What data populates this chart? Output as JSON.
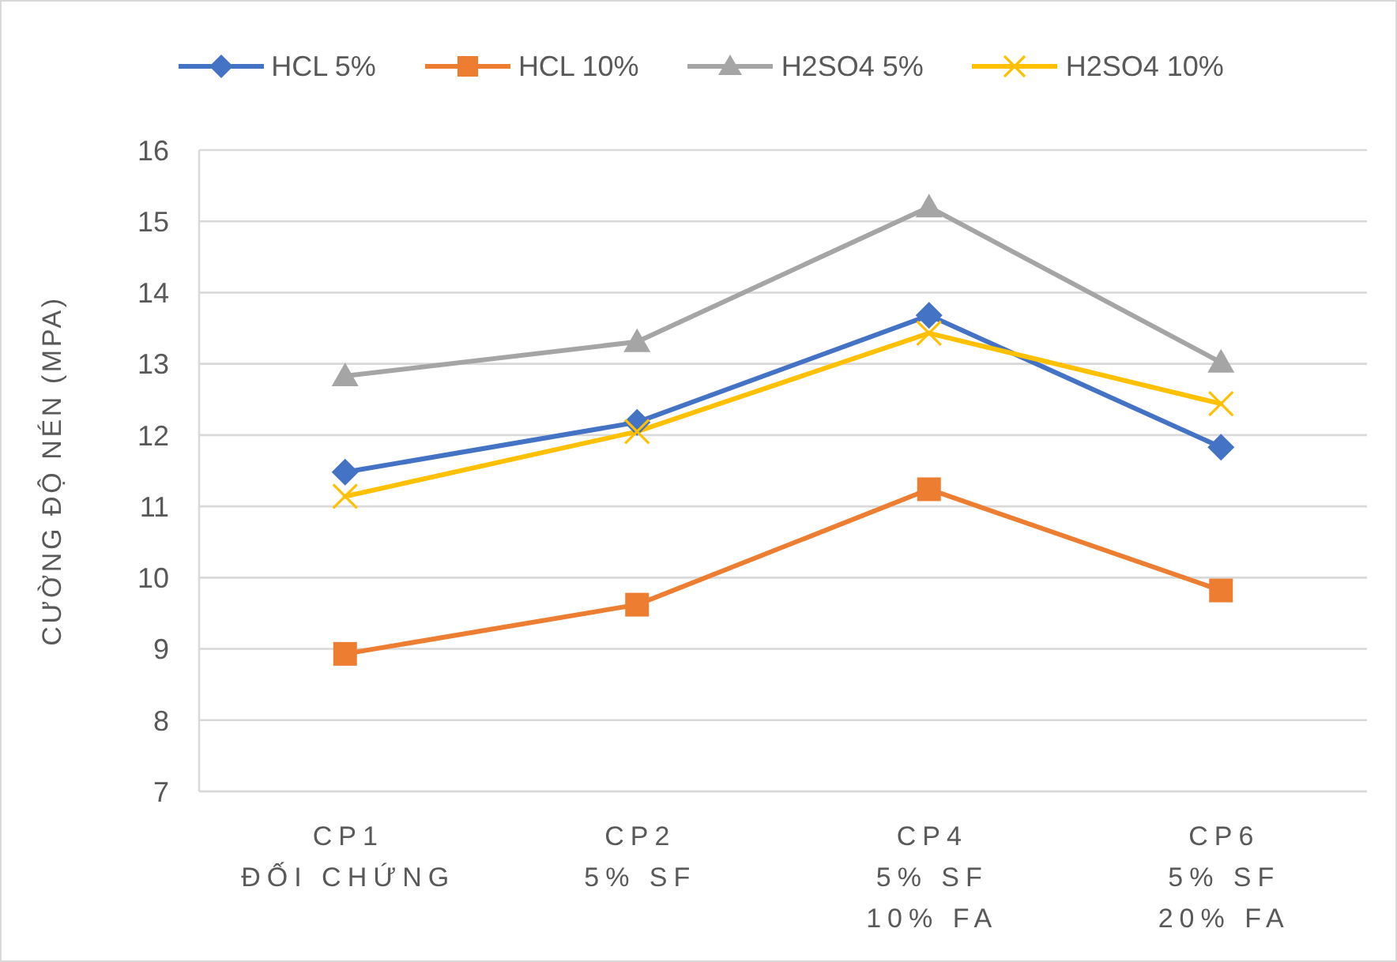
{
  "chart_data": {
    "type": "line",
    "ylabel": "CƯỜNG ĐỘ NÉN (MPA)",
    "categories": [
      "CP1\nĐỐI CHỨNG",
      "CP2\n5% SF",
      "CP4\n5% SF\n10% FA",
      "CP6\n5% SF\n20% FA"
    ],
    "series": [
      {
        "name": "HCL 5%",
        "color": "#4472c4",
        "marker": "diamond",
        "values": [
          11.48,
          12.18,
          13.68,
          11.83
        ]
      },
      {
        "name": "HCL 10%",
        "color": "#ed7d31",
        "marker": "square",
        "values": [
          8.93,
          9.62,
          11.24,
          9.82
        ]
      },
      {
        "name": "H2SO4 5%",
        "color": "#a5a5a5",
        "marker": "triangle",
        "values": [
          12.83,
          13.31,
          15.2,
          13.02
        ]
      },
      {
        "name": "H2SO4 10%",
        "color": "#ffc000",
        "marker": "cross",
        "values": [
          11.14,
          12.05,
          13.43,
          12.44
        ]
      }
    ],
    "ylim": [
      7,
      16
    ],
    "yticks": [
      7,
      8,
      9,
      10,
      11,
      12,
      13,
      14,
      15,
      16
    ],
    "grid": "y",
    "legend": "top",
    "line_style": "solid"
  }
}
